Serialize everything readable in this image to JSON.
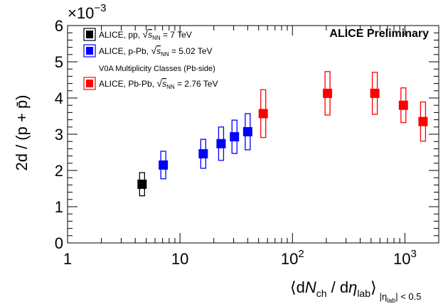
{
  "chart_data": {
    "type": "scatter",
    "title": "ALICE Preliminary",
    "ylabel": "2d / (p + p̄)",
    "y_multiplier": "×10",
    "y_multiplier_exp": "−3",
    "xlabel_parts": {
      "open": "⟨d",
      "N": "N",
      "ch": "ch",
      "mid": " / d",
      "eta": "η",
      "lab": "lab",
      "close": "⟩",
      "cut_eta": "|η",
      "cut_lab": "lab",
      "cut_rest": "| < 0.5"
    },
    "x_scale": "log",
    "xlim": [
      1,
      2000
    ],
    "ylim": [
      0,
      6
    ],
    "x_ticks": [
      {
        "value": 1,
        "label": "1",
        "sup": ""
      },
      {
        "value": 10,
        "label": "10",
        "sup": ""
      },
      {
        "value": 100,
        "label": "10",
        "sup": "2"
      },
      {
        "value": 1000,
        "label": "10",
        "sup": "3"
      }
    ],
    "y_ticks": [
      "0",
      "1",
      "2",
      "3",
      "4",
      "5",
      "6"
    ],
    "legend_note": "V0A Multiplicity Classes (Pb-side)",
    "series": [
      {
        "name": "pp",
        "legend": {
          "prefix": "ALICE, pp, ",
          "sqrt": "s",
          "sub": "NN",
          "suffix": " = 7 TeV"
        },
        "color": "#000000",
        "points": [
          {
            "x": 4.6,
            "y": 1.62,
            "sys": 0.32,
            "stat": 0.03
          }
        ]
      },
      {
        "name": "p-Pb",
        "legend": {
          "prefix": "ALICE, p-Pb, ",
          "sqrt": "s",
          "sub": "NN",
          "suffix": " = 5.02 TeV"
        },
        "color": "#0000ff",
        "points": [
          {
            "x": 7.1,
            "y": 2.15,
            "sys": 0.38,
            "stat": 0.03
          },
          {
            "x": 16.1,
            "y": 2.46,
            "sys": 0.4,
            "stat": 0.03
          },
          {
            "x": 23.2,
            "y": 2.74,
            "sys": 0.46,
            "stat": 0.03
          },
          {
            "x": 30.5,
            "y": 2.93,
            "sys": 0.46,
            "stat": 0.03
          },
          {
            "x": 40.0,
            "y": 3.07,
            "sys": 0.5,
            "stat": 0.03
          }
        ]
      },
      {
        "name": "Pb-Pb",
        "legend": {
          "prefix": "ALICE, Pb-Pb, ",
          "sqrt": "s",
          "sub": "NN",
          "suffix": " = 2.76 TeV"
        },
        "color": "#ff0000",
        "points": [
          {
            "x": 55,
            "y": 3.57,
            "sys": 0.66,
            "stat": 0.03
          },
          {
            "x": 205,
            "y": 4.13,
            "sys": 0.6,
            "stat": 0.03
          },
          {
            "x": 540,
            "y": 4.13,
            "sys": 0.58,
            "stat": 0.03
          },
          {
            "x": 970,
            "y": 3.8,
            "sys": 0.48,
            "stat": 0.03
          },
          {
            "x": 1450,
            "y": 3.35,
            "sys": 0.54,
            "stat": 0.03
          }
        ]
      }
    ]
  }
}
